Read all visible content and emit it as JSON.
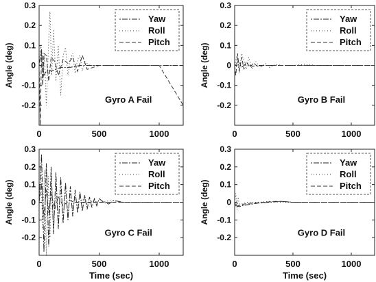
{
  "chart_data": [
    {
      "type": "line",
      "annotation": "Gyro A Fail",
      "xlabel": "",
      "ylabel": "Angle (deg)",
      "xlim": [
        0,
        1200
      ],
      "ylim": [
        -0.3,
        0.3
      ],
      "xticks": [
        0,
        500,
        1000
      ],
      "yticks": [
        -0.2,
        -0.1,
        0,
        0.1,
        0.2,
        0.3
      ],
      "x_tick_labels": [
        "0",
        "500",
        "1000"
      ],
      "y_tick_labels": [
        "-0.2",
        "-0.1",
        "0",
        "0.1",
        "0.2",
        "0.3"
      ],
      "legend": "top-right",
      "series": [
        {
          "name": "Yaw",
          "x": [
            0,
            20,
            40,
            60,
            80,
            100,
            140,
            180,
            220,
            260,
            300,
            340,
            380,
            420,
            500,
            700,
            900,
            1200
          ],
          "y": [
            0,
            0.08,
            -0.05,
            -0.03,
            -0.02,
            -0.03,
            -0.02,
            -0.01,
            -0.01,
            -0.01,
            -0.005,
            0,
            0,
            0,
            0,
            0,
            0,
            0
          ]
        },
        {
          "name": "Roll",
          "x": [
            0,
            15,
            30,
            45,
            60,
            75,
            90,
            105,
            120,
            140,
            160,
            180,
            200,
            220,
            240,
            260,
            280,
            300,
            320,
            340,
            360,
            380,
            420,
            500,
            700,
            1200
          ],
          "y": [
            0,
            0.1,
            -0.1,
            0.05,
            -0.2,
            0.05,
            0.27,
            -0.05,
            0.18,
            -0.08,
            0.1,
            -0.15,
            0.05,
            0.09,
            -0.05,
            0.03,
            0.06,
            -0.04,
            0.03,
            0.05,
            -0.03,
            0.02,
            0,
            0,
            0,
            0
          ]
        },
        {
          "name": "Pitch",
          "x": [
            0,
            10,
            20,
            30,
            40,
            60,
            80,
            100,
            130,
            160,
            200,
            240,
            280,
            320,
            360,
            400,
            500,
            700,
            1000,
            1200
          ],
          "y": [
            0,
            -0.3,
            0.08,
            -0.1,
            0.06,
            0.05,
            -0.08,
            0.04,
            0.02,
            -0.05,
            0.03,
            0.01,
            0.04,
            -0.03,
            0.05,
            -0.02,
            0,
            0,
            0,
            -0.2
          ]
        }
      ]
    },
    {
      "type": "line",
      "annotation": "Gyro B Fail",
      "xlabel": "",
      "ylabel": "Angle (deg)",
      "xlim": [
        0,
        1200
      ],
      "ylim": [
        -0.3,
        0.3
      ],
      "xticks": [
        0,
        500,
        1000
      ],
      "yticks": [
        -0.2,
        -0.1,
        0,
        0.1,
        0.2,
        0.3
      ],
      "x_tick_labels": [
        "0",
        "500",
        "1000"
      ],
      "y_tick_labels": [
        "-0.2",
        "-0.1",
        "0",
        "0.1",
        "0.2",
        "0.3"
      ],
      "legend": "top-right",
      "series": [
        {
          "name": "Yaw",
          "x": [
            0,
            30,
            60,
            100,
            150,
            200,
            300,
            400,
            600,
            800,
            1200
          ],
          "y": [
            0,
            0.02,
            -0.01,
            0.01,
            -0.005,
            0,
            0,
            0,
            0,
            0,
            0
          ]
        },
        {
          "name": "Roll",
          "x": [
            0,
            20,
            40,
            60,
            80,
            100,
            120,
            150,
            180,
            220,
            260,
            300,
            350,
            400,
            500,
            600,
            700,
            1200
          ],
          "y": [
            0,
            0.05,
            -0.04,
            0.06,
            0.02,
            -0.02,
            0.04,
            -0.02,
            0.02,
            -0.01,
            0.01,
            -0.01,
            0.005,
            0,
            0,
            0.005,
            0,
            0
          ]
        },
        {
          "name": "Pitch",
          "x": [
            0,
            10,
            25,
            40,
            60,
            80,
            100,
            130,
            160,
            200,
            250,
            300,
            400,
            500,
            1200
          ],
          "y": [
            0,
            -0.05,
            0.06,
            -0.03,
            0.04,
            -0.02,
            0.02,
            -0.01,
            0.01,
            -0.005,
            0,
            0,
            0,
            0,
            0
          ]
        }
      ]
    },
    {
      "type": "line",
      "annotation": "Gyro C Fail",
      "xlabel": "Time (sec)",
      "ylabel": "Angle (deg)",
      "xlim": [
        0,
        1200
      ],
      "ylim": [
        -0.3,
        0.3
      ],
      "xticks": [
        0,
        500,
        1000
      ],
      "yticks": [
        -0.2,
        -0.1,
        0,
        0.1,
        0.2,
        0.3
      ],
      "x_tick_labels": [
        "0",
        "500",
        "1000"
      ],
      "y_tick_labels": [
        "-0.2",
        "-0.1",
        "0",
        "0.1",
        "0.2",
        "0.3"
      ],
      "legend": "top-right",
      "series": [
        {
          "name": "Yaw",
          "x": [
            0,
            20,
            40,
            60,
            80,
            100,
            120,
            140,
            160,
            180,
            200,
            220,
            240,
            260,
            280,
            300,
            320,
            340,
            360,
            380,
            400,
            420,
            440,
            460,
            480,
            500,
            540,
            580,
            620,
            700,
            800,
            1200
          ],
          "y": [
            0,
            0.27,
            -0.28,
            0.22,
            -0.25,
            0.2,
            -0.18,
            0.17,
            -0.15,
            0.14,
            -0.12,
            0.11,
            -0.1,
            0.09,
            -0.08,
            0.07,
            -0.06,
            0.06,
            -0.05,
            0.04,
            -0.04,
            0.03,
            -0.03,
            0.02,
            -0.02,
            0.02,
            0.0,
            -0.01,
            0.01,
            0,
            0,
            0
          ]
        },
        {
          "name": "Roll",
          "x": [
            0,
            15,
            30,
            45,
            60,
            75,
            90,
            105,
            120,
            140,
            160,
            180,
            200,
            220,
            240,
            260,
            280,
            300,
            330,
            360,
            400,
            450,
            500,
            600,
            700,
            1200
          ],
          "y": [
            0,
            0.2,
            -0.15,
            0.18,
            -0.3,
            0.15,
            -0.2,
            0.12,
            -0.15,
            0.1,
            -0.12,
            0.08,
            -0.08,
            0.06,
            -0.06,
            0.05,
            -0.04,
            0.03,
            -0.03,
            0.02,
            -0.01,
            0.01,
            0,
            0.01,
            0,
            0
          ]
        },
        {
          "name": "Pitch",
          "x": [
            0,
            20,
            40,
            60,
            80,
            100,
            130,
            160,
            200,
            250,
            300,
            400,
            500,
            600,
            1200
          ],
          "y": [
            0,
            0.1,
            -0.08,
            0.07,
            -0.06,
            0.05,
            -0.04,
            0.03,
            -0.02,
            0.01,
            0,
            0,
            0,
            0,
            0
          ]
        }
      ]
    },
    {
      "type": "line",
      "annotation": "Gyro D Fail",
      "xlabel": "Time (sec)",
      "ylabel": "Angle (deg)",
      "xlim": [
        0,
        1200
      ],
      "ylim": [
        -0.3,
        0.3
      ],
      "xticks": [
        0,
        500,
        1000
      ],
      "yticks": [
        -0.2,
        -0.1,
        0,
        0.1,
        0.2,
        0.3
      ],
      "x_tick_labels": [
        "0",
        "500",
        "1000"
      ],
      "y_tick_labels": [
        "-0.2",
        "-0.1",
        "0",
        "0.1",
        "0.2",
        "0.3"
      ],
      "legend": "top-right",
      "series": [
        {
          "name": "Yaw",
          "x": [
            0,
            20,
            40,
            60,
            100,
            150,
            200,
            300,
            400,
            500,
            600,
            1200
          ],
          "y": [
            0,
            -0.02,
            -0.025,
            -0.02,
            -0.015,
            -0.01,
            -0.005,
            0,
            0.005,
            0,
            0,
            0
          ]
        },
        {
          "name": "Roll",
          "x": [
            0,
            10,
            20,
            30,
            40,
            60,
            100,
            200,
            300,
            400,
            500,
            1200
          ],
          "y": [
            0,
            0.05,
            -0.04,
            0.03,
            -0.02,
            -0.01,
            0,
            0,
            0.005,
            0,
            0,
            0
          ]
        },
        {
          "name": "Pitch",
          "x": [
            0,
            15,
            30,
            50,
            80,
            150,
            250,
            350,
            400,
            500,
            1200
          ],
          "y": [
            0,
            -0.03,
            -0.02,
            -0.015,
            -0.01,
            -0.005,
            0,
            0.005,
            0.005,
            0,
            0
          ]
        }
      ]
    }
  ]
}
